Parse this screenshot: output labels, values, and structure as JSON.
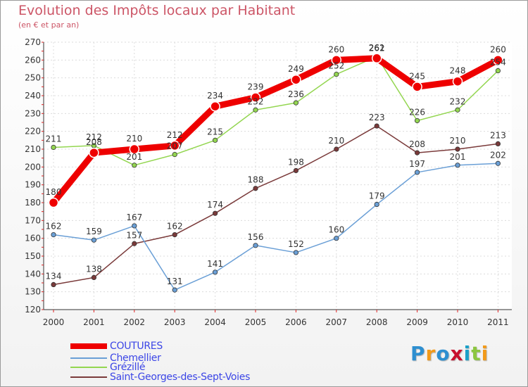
{
  "chart_data": {
    "type": "line",
    "title": "Evolution des Impôts locaux par Habitant",
    "subtitle": "(en € et par an)",
    "xlabel": "",
    "ylabel": "",
    "ylim": [
      120,
      270
    ],
    "yticks": [
      "120",
      "130",
      "140",
      "150",
      "160",
      "170",
      "180",
      "190",
      "200",
      "210",
      "220",
      "230",
      "240",
      "250",
      "260",
      "270"
    ],
    "categories": [
      "2000",
      "2001",
      "2002",
      "2003",
      "2004",
      "2005",
      "2006",
      "2007",
      "2008",
      "2009",
      "2010",
      "2011"
    ],
    "grid": true,
    "legend": "bottom-left",
    "series": [
      {
        "name": "COUTURES",
        "color": "#ee0000",
        "values": [
          180,
          208,
          210,
          212,
          234,
          239,
          249,
          260,
          261,
          245,
          248,
          260
        ],
        "labels": [
          "180",
          "208",
          "210",
          "212",
          "234",
          "239",
          "249",
          "260",
          "261",
          "245",
          "248",
          "260"
        ]
      },
      {
        "name": "Chemellier",
        "color": "#6a9fd6",
        "values": [
          162,
          159,
          167,
          131,
          141,
          156,
          152,
          160,
          179,
          197,
          201,
          202
        ],
        "labels": [
          "162",
          "159",
          "167",
          "131",
          "141",
          "156",
          "152",
          "160",
          "179",
          "197",
          "201",
          "202"
        ]
      },
      {
        "name": "Grézillé",
        "color": "#93d650",
        "values": [
          211,
          212,
          201,
          207,
          215,
          232,
          236,
          252,
          262,
          226,
          232,
          254
        ],
        "labels": [
          "211",
          "212",
          "201",
          "207",
          "215",
          "232",
          "236",
          "252",
          "262",
          "226",
          "232",
          "254"
        ]
      },
      {
        "name": "Saint-Georges-des-Sept-Voies",
        "color": "#7a3a3a",
        "values": [
          134,
          138,
          157,
          162,
          174,
          188,
          198,
          210,
          223,
          208,
          210,
          213
        ],
        "labels": [
          "134",
          "138",
          "157",
          "162",
          "174",
          "188",
          "198",
          "210",
          "223",
          "208",
          "210",
          "213"
        ]
      }
    ]
  },
  "brand": {
    "parts": [
      "P",
      "r",
      "o",
      "x",
      "i",
      "t",
      "i"
    ],
    "colors": [
      "#2e8fd0",
      "#f29a1a",
      "#2e8fd0",
      "#c8102e",
      "#1aa0c8",
      "#8cc63f",
      "#f29a1a"
    ]
  }
}
